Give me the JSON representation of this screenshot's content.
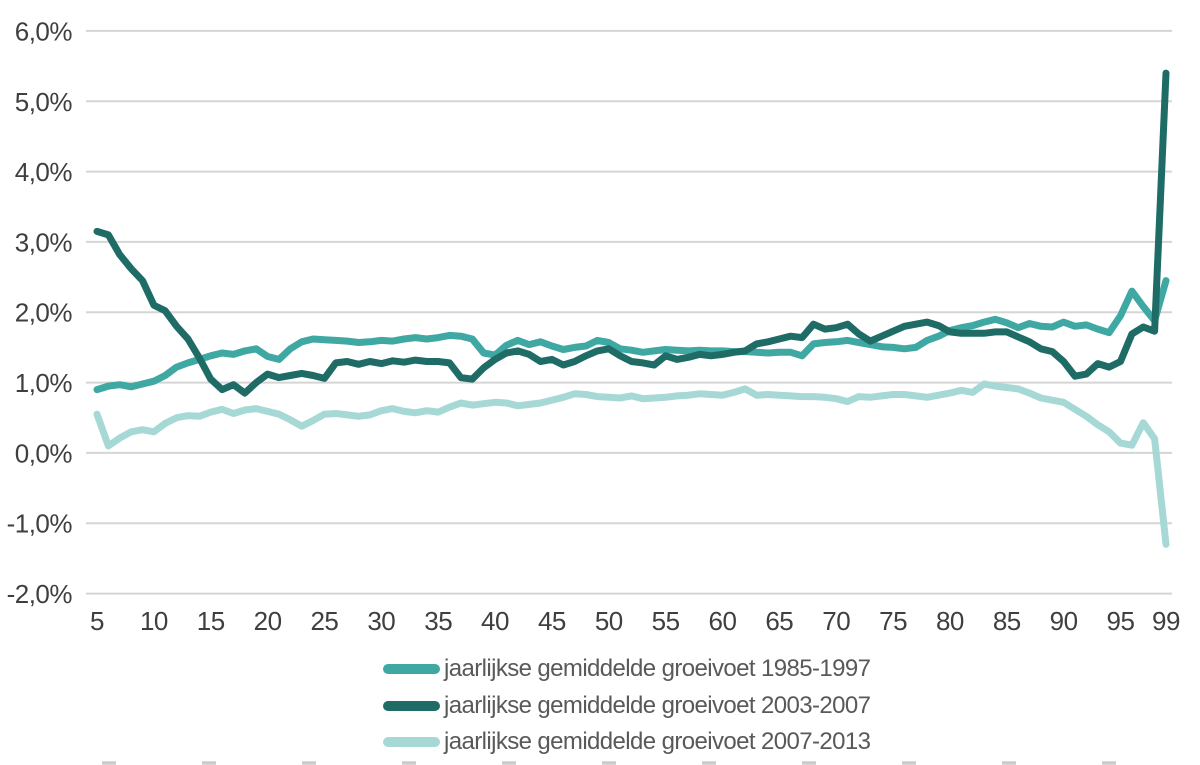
{
  "chart_data": {
    "type": "line",
    "title": "",
    "xlabel": "",
    "ylabel": "",
    "grid": "horizontal",
    "legend_position": "bottom",
    "x_axis": {
      "range": [
        5,
        99
      ],
      "ticks": [
        5,
        10,
        15,
        20,
        25,
        30,
        35,
        40,
        45,
        50,
        55,
        60,
        65,
        70,
        75,
        80,
        85,
        90,
        95,
        99
      ],
      "tick_labels": [
        "5",
        "10",
        "15",
        "20",
        "25",
        "30",
        "35",
        "40",
        "45",
        "50",
        "55",
        "60",
        "65",
        "70",
        "75",
        "80",
        "85",
        "90",
        "95",
        "99"
      ]
    },
    "y_axis": {
      "range": [
        -2.0,
        6.0
      ],
      "ticks": [
        6,
        5,
        4,
        3,
        2,
        1,
        0,
        -1,
        -2
      ],
      "tick_labels": [
        "6,0%",
        "5,0%",
        "4,0%",
        "3,0%",
        "2,0%",
        "1,0%",
        "0,0%",
        "-1,0%",
        "-2,0%"
      ],
      "unit": "percent"
    },
    "x": [
      5,
      6,
      7,
      8,
      9,
      10,
      11,
      12,
      13,
      14,
      15,
      16,
      17,
      18,
      19,
      20,
      21,
      22,
      23,
      24,
      25,
      26,
      27,
      28,
      29,
      30,
      31,
      32,
      33,
      34,
      35,
      36,
      37,
      38,
      39,
      40,
      41,
      42,
      43,
      44,
      45,
      46,
      47,
      48,
      49,
      50,
      51,
      52,
      53,
      54,
      55,
      56,
      57,
      58,
      59,
      60,
      61,
      62,
      63,
      64,
      65,
      66,
      67,
      68,
      69,
      70,
      71,
      72,
      73,
      74,
      75,
      76,
      77,
      78,
      79,
      80,
      81,
      82,
      83,
      84,
      85,
      86,
      87,
      88,
      89,
      90,
      91,
      92,
      93,
      94,
      95,
      96,
      97,
      98,
      99
    ],
    "series": [
      {
        "name": "jaarlijkse gemiddelde groeivoet 1985-1997",
        "color": "#3FA8A3",
        "values": [
          0.9,
          0.95,
          0.97,
          0.94,
          0.98,
          1.02,
          1.1,
          1.22,
          1.28,
          1.33,
          1.38,
          1.42,
          1.4,
          1.45,
          1.48,
          1.37,
          1.33,
          1.48,
          1.58,
          1.62,
          1.61,
          1.6,
          1.59,
          1.57,
          1.58,
          1.6,
          1.59,
          1.62,
          1.64,
          1.62,
          1.64,
          1.67,
          1.66,
          1.62,
          1.42,
          1.39,
          1.53,
          1.6,
          1.54,
          1.58,
          1.52,
          1.47,
          1.5,
          1.52,
          1.6,
          1.57,
          1.48,
          1.46,
          1.43,
          1.45,
          1.47,
          1.46,
          1.45,
          1.46,
          1.45,
          1.45,
          1.44,
          1.44,
          1.43,
          1.42,
          1.43,
          1.43,
          1.38,
          1.55,
          1.57,
          1.58,
          1.6,
          1.57,
          1.54,
          1.51,
          1.5,
          1.48,
          1.5,
          1.6,
          1.66,
          1.74,
          1.78,
          1.81,
          1.86,
          1.9,
          1.85,
          1.78,
          1.84,
          1.8,
          1.79,
          1.86,
          1.8,
          1.82,
          1.76,
          1.71,
          1.95,
          2.3,
          2.08,
          1.88,
          2.45
        ]
      },
      {
        "name": "jaarlijkse gemiddelde groeivoet 2003-2007",
        "color": "#1F6C67",
        "values": [
          3.15,
          3.1,
          2.82,
          2.62,
          2.45,
          2.1,
          2.02,
          1.8,
          1.62,
          1.35,
          1.05,
          0.9,
          0.97,
          0.85,
          1.0,
          1.12,
          1.07,
          1.1,
          1.13,
          1.1,
          1.06,
          1.28,
          1.3,
          1.26,
          1.3,
          1.27,
          1.31,
          1.29,
          1.32,
          1.3,
          1.3,
          1.28,
          1.07,
          1.05,
          1.21,
          1.33,
          1.42,
          1.45,
          1.4,
          1.3,
          1.33,
          1.25,
          1.3,
          1.38,
          1.45,
          1.48,
          1.38,
          1.3,
          1.28,
          1.25,
          1.38,
          1.33,
          1.36,
          1.4,
          1.38,
          1.4,
          1.43,
          1.45,
          1.55,
          1.58,
          1.62,
          1.66,
          1.64,
          1.83,
          1.76,
          1.78,
          1.83,
          1.69,
          1.59,
          1.66,
          1.73,
          1.8,
          1.83,
          1.86,
          1.81,
          1.72,
          1.7,
          1.7,
          1.7,
          1.72,
          1.72,
          1.65,
          1.58,
          1.48,
          1.44,
          1.3,
          1.09,
          1.12,
          1.27,
          1.22,
          1.3,
          1.69,
          1.79,
          1.73,
          5.4
        ]
      },
      {
        "name": "jaarlijkse gemiddelde groeivoet 2007-2013",
        "color": "#A6D9D5",
        "values": [
          0.55,
          0.1,
          0.21,
          0.3,
          0.33,
          0.3,
          0.42,
          0.5,
          0.53,
          0.52,
          0.58,
          0.62,
          0.56,
          0.61,
          0.63,
          0.59,
          0.55,
          0.47,
          0.38,
          0.46,
          0.55,
          0.56,
          0.54,
          0.52,
          0.54,
          0.6,
          0.63,
          0.59,
          0.57,
          0.6,
          0.58,
          0.65,
          0.71,
          0.68,
          0.7,
          0.72,
          0.71,
          0.67,
          0.69,
          0.71,
          0.75,
          0.79,
          0.84,
          0.83,
          0.8,
          0.79,
          0.78,
          0.81,
          0.77,
          0.78,
          0.79,
          0.81,
          0.82,
          0.84,
          0.83,
          0.82,
          0.86,
          0.91,
          0.82,
          0.83,
          0.82,
          0.81,
          0.8,
          0.8,
          0.79,
          0.77,
          0.73,
          0.8,
          0.79,
          0.81,
          0.83,
          0.83,
          0.81,
          0.79,
          0.82,
          0.85,
          0.89,
          0.86,
          0.98,
          0.95,
          0.93,
          0.91,
          0.85,
          0.78,
          0.75,
          0.72,
          0.62,
          0.52,
          0.4,
          0.3,
          0.14,
          0.11,
          0.43,
          0.2,
          -1.3
        ]
      }
    ]
  },
  "colors": {
    "background": "#FFFFFF",
    "gridline": "#D5D5D5",
    "axis_text": "#3F3F3F",
    "legend_text": "#58595B",
    "dashed_divider": "#CBCBCB"
  }
}
